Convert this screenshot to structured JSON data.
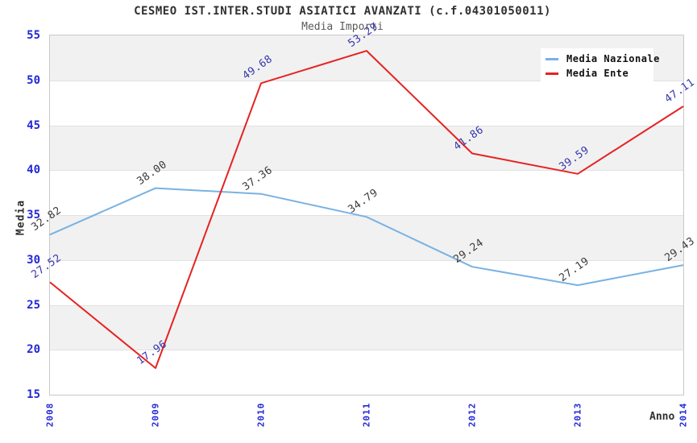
{
  "header": {
    "title": "CESMEO IST.INTER.STUDI ASIATICI AVANZATI (c.f.04301050011)",
    "subtitle": "Media Importi"
  },
  "axes": {
    "y_title": "Media",
    "x_title": "Anno",
    "y_ticks": [
      15,
      20,
      25,
      30,
      35,
      40,
      45,
      50,
      55
    ],
    "x_ticks": [
      "2008",
      "2009",
      "2010",
      "2011",
      "2012",
      "2013",
      "2014"
    ]
  },
  "legend": {
    "position": "top-right",
    "items": [
      {
        "label": "Media Nazionale",
        "color": "#79b2e2"
      },
      {
        "label": "Media Ente",
        "color": "#e62222"
      }
    ]
  },
  "colors": {
    "axis_tick_blue": "#2328d6",
    "band_gray": "#f1f1f1",
    "gridline": "#e1e1e1",
    "plot_border": "#c9c9c9",
    "title": "#303030",
    "subtitle": "#5a5a5a"
  },
  "chart_data": {
    "type": "line",
    "title": "CESMEO IST.INTER.STUDI ASIATICI AVANZATI (c.f.04301050011)",
    "subtitle": "Media Importi",
    "xlabel": "Anno",
    "ylabel": "Media",
    "x": [
      "2008",
      "2009",
      "2010",
      "2011",
      "2012",
      "2013",
      "2014"
    ],
    "series": [
      {
        "name": "Media Nazionale",
        "color": "#79b2e2",
        "label_color": "#3a3a3a",
        "values": [
          32.82,
          38.0,
          37.36,
          34.79,
          29.24,
          27.19,
          29.43
        ]
      },
      {
        "name": "Media Ente",
        "color": "#e62222",
        "label_color": "#3535ae",
        "values": [
          27.52,
          17.96,
          49.68,
          53.29,
          41.86,
          39.59,
          47.11
        ]
      }
    ],
    "ylim": [
      15,
      55
    ],
    "ytick_step": 5,
    "grid": "horizontal-bands-alternating",
    "legend_position": "top-right",
    "data_labels": "rotated, 2 decimals"
  }
}
